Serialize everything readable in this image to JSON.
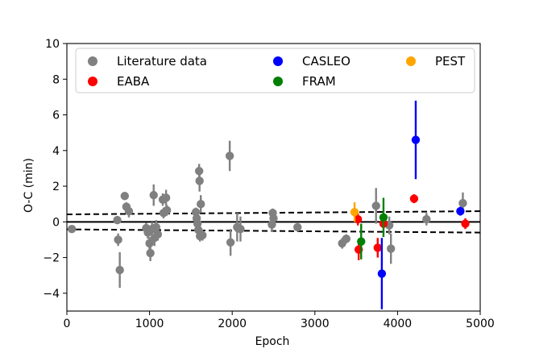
{
  "chart_data": {
    "type": "scatter",
    "title": "",
    "xlabel": "Epoch",
    "ylabel": "O-C (min)",
    "xlim": [
      0,
      5000
    ],
    "ylim": [
      -5,
      10
    ],
    "x_ticks": [
      "0",
      "1000",
      "2000",
      "3000",
      "4000",
      "5000"
    ],
    "y_ticks": [
      "−4",
      "−2",
      "0",
      "2",
      "4",
      "6",
      "8",
      "10"
    ],
    "grid": false,
    "legend_placement": "top",
    "zero_line": 0,
    "dashed_bounds": {
      "upper": {
        "x": [
          0,
          5000
        ],
        "y": [
          0.42,
          0.6
        ]
      },
      "lower": {
        "x": [
          0,
          5000
        ],
        "y": [
          -0.42,
          -0.6
        ]
      }
    },
    "series": [
      {
        "name": "Literature data",
        "color": "#808080",
        "points": [
          {
            "x": 60,
            "y": -0.4,
            "err": 0.1
          },
          {
            "x": 610,
            "y": 0.1,
            "err": 0.2
          },
          {
            "x": 620,
            "y": -1.0,
            "err": 0.35
          },
          {
            "x": 640,
            "y": -2.7,
            "err": 1.0
          },
          {
            "x": 700,
            "y": 1.45,
            "err": 0.2
          },
          {
            "x": 720,
            "y": 0.85,
            "err": 0.25
          },
          {
            "x": 750,
            "y": 0.6,
            "err": 0.35
          },
          {
            "x": 960,
            "y": -0.35,
            "err": 0.3
          },
          {
            "x": 980,
            "y": -0.6,
            "err": 0.35
          },
          {
            "x": 1000,
            "y": -1.2,
            "err": 0.35
          },
          {
            "x": 1010,
            "y": -1.75,
            "err": 0.45
          },
          {
            "x": 1030,
            "y": -0.4,
            "err": 0.4
          },
          {
            "x": 1050,
            "y": 1.5,
            "err": 0.6
          },
          {
            "x": 1060,
            "y": -0.9,
            "err": 0.45
          },
          {
            "x": 1080,
            "y": -0.3,
            "err": 0.4
          },
          {
            "x": 1100,
            "y": -0.7,
            "err": 0.35
          },
          {
            "x": 1160,
            "y": 1.25,
            "err": 0.35
          },
          {
            "x": 1170,
            "y": 0.5,
            "err": 0.3
          },
          {
            "x": 1200,
            "y": 1.35,
            "err": 0.45
          },
          {
            "x": 1210,
            "y": 0.65,
            "err": 0.3
          },
          {
            "x": 1560,
            "y": 0.55,
            "err": 0.25
          },
          {
            "x": 1570,
            "y": 0.2,
            "err": 0.2
          },
          {
            "x": 1580,
            "y": -0.1,
            "err": 0.25
          },
          {
            "x": 1590,
            "y": -0.45,
            "err": 0.3
          },
          {
            "x": 1600,
            "y": 2.85,
            "err": 0.4
          },
          {
            "x": 1605,
            "y": 2.3,
            "err": 0.6
          },
          {
            "x": 1610,
            "y": -0.8,
            "err": 0.3
          },
          {
            "x": 1620,
            "y": 1.0,
            "err": 0.5
          },
          {
            "x": 1640,
            "y": -0.75,
            "err": 0.3
          },
          {
            "x": 1970,
            "y": 3.7,
            "err": 0.85
          },
          {
            "x": 1980,
            "y": -1.15,
            "err": 0.75
          },
          {
            "x": 2060,
            "y": -0.3,
            "err": 0.8
          },
          {
            "x": 2100,
            "y": -0.4,
            "err": 0.7
          },
          {
            "x": 2480,
            "y": -0.15,
            "err": 0.4
          },
          {
            "x": 2490,
            "y": 0.5,
            "err": 0.25
          },
          {
            "x": 2500,
            "y": 0.2,
            "err": 0.3
          },
          {
            "x": 2790,
            "y": -0.3,
            "err": 0.2
          },
          {
            "x": 3330,
            "y": -1.2,
            "err": 0.3
          },
          {
            "x": 3380,
            "y": -0.95,
            "err": 0.25
          },
          {
            "x": 3740,
            "y": 0.9,
            "err": 1.0
          },
          {
            "x": 3900,
            "y": -0.2,
            "err": 0.5
          },
          {
            "x": 3920,
            "y": -1.5,
            "err": 0.85
          },
          {
            "x": 4350,
            "y": 0.15,
            "err": 0.35
          },
          {
            "x": 4790,
            "y": 1.05,
            "err": 0.6
          }
        ]
      },
      {
        "name": "EABA",
        "color": "#ff0000",
        "points": [
          {
            "x": 3520,
            "y": 0.15,
            "err": 0.35
          },
          {
            "x": 3530,
            "y": -1.55,
            "err": 0.6
          },
          {
            "x": 3760,
            "y": -1.45,
            "err": 0.55
          },
          {
            "x": 3830,
            "y": -0.1,
            "err": 0.2
          },
          {
            "x": 4200,
            "y": 1.3,
            "err": 0.25
          },
          {
            "x": 4820,
            "y": -0.1,
            "err": 0.3
          }
        ]
      },
      {
        "name": "CASLEO",
        "color": "#0000ff",
        "points": [
          {
            "x": 3810,
            "y": -2.9,
            "err": 2.0
          },
          {
            "x": 4220,
            "y": 4.6,
            "err": 2.2
          },
          {
            "x": 4760,
            "y": 0.6,
            "err": 0.25
          }
        ]
      },
      {
        "name": "FRAM",
        "color": "#008000",
        "points": [
          {
            "x": 3560,
            "y": -1.1,
            "err": 1.0
          },
          {
            "x": 3830,
            "y": 0.25,
            "err": 1.1
          }
        ]
      },
      {
        "name": "PEST",
        "color": "#ffa500",
        "points": [
          {
            "x": 3480,
            "y": 0.55,
            "err": 0.55
          }
        ]
      }
    ]
  }
}
